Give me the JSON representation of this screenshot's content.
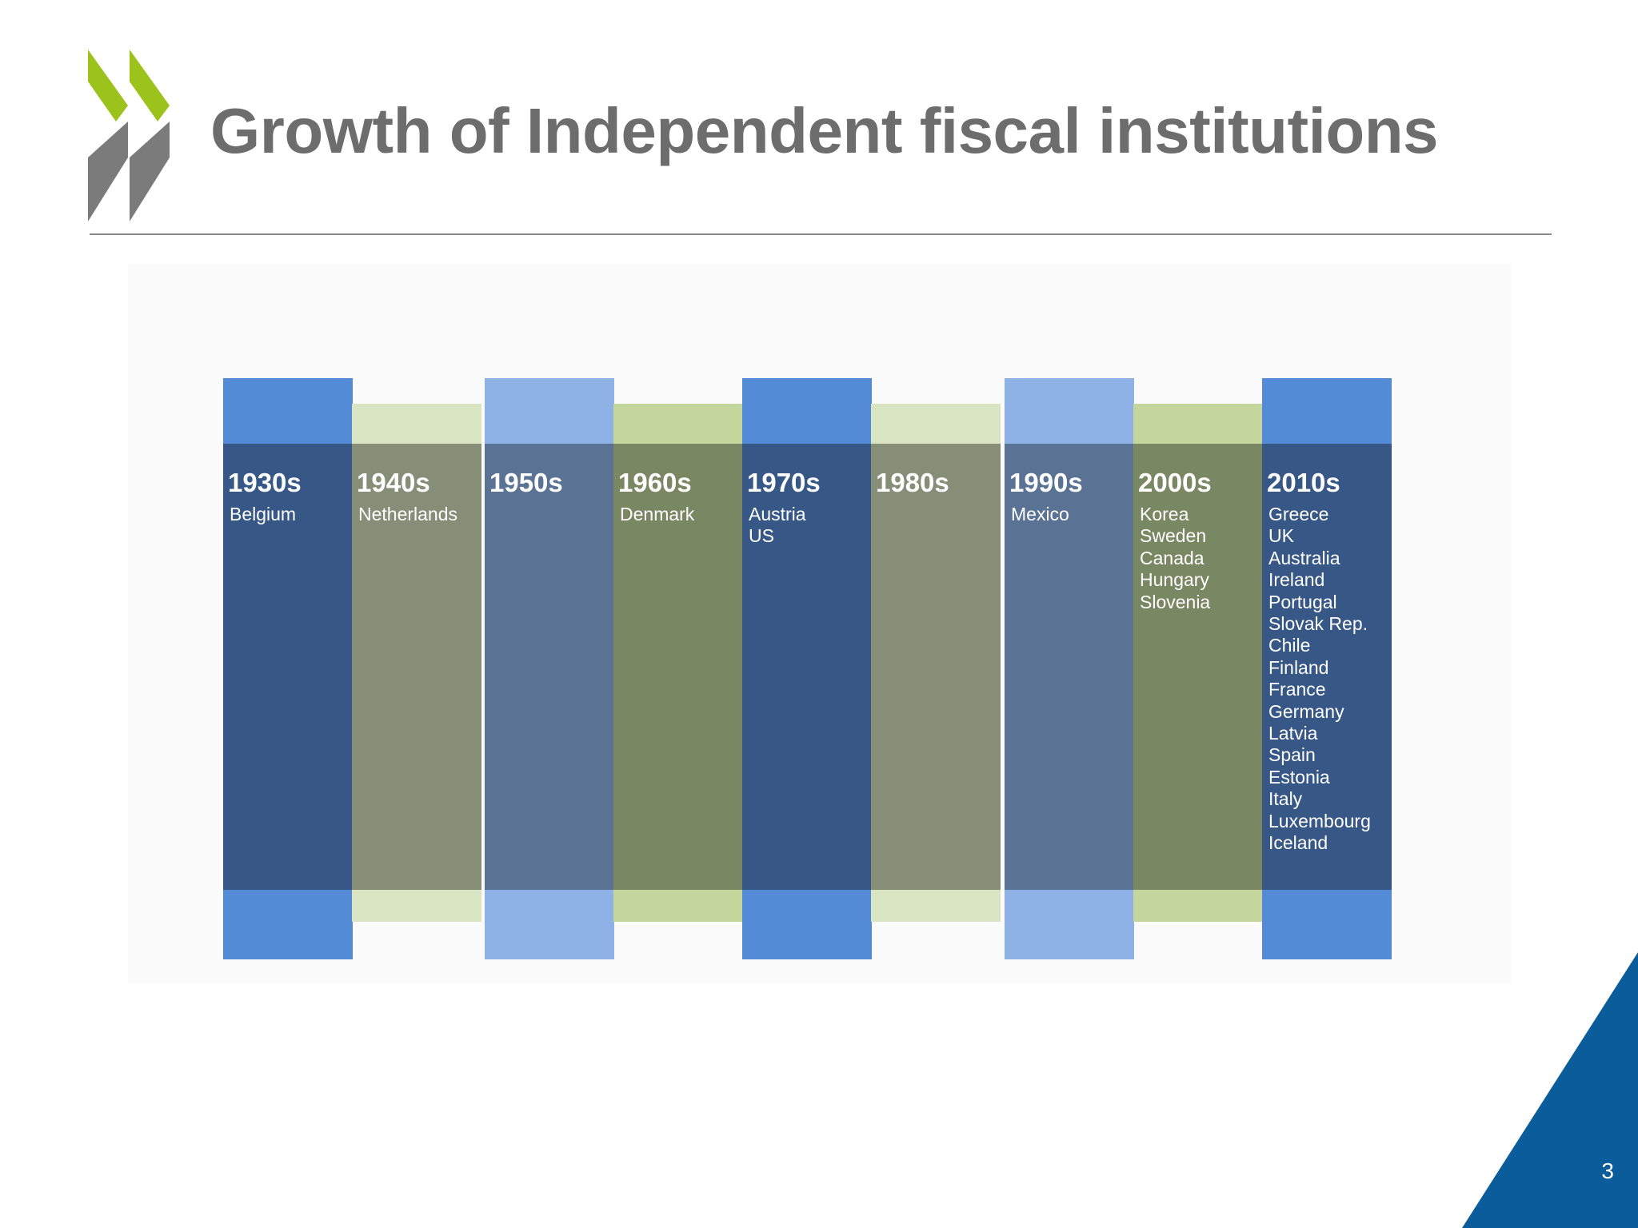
{
  "slide": {
    "title": "Growth of Independent fiscal institutions",
    "page_number": "3"
  },
  "timeline": [
    {
      "decade": "1930s",
      "countries": [
        "Belgium"
      ],
      "style": "blue-dark"
    },
    {
      "decade": "1940s",
      "countries": [
        "Netherlands"
      ],
      "style": "green-light"
    },
    {
      "decade": "1950s",
      "countries": [],
      "style": "blue-light"
    },
    {
      "decade": "1960s",
      "countries": [
        "Denmark"
      ],
      "style": "green-dark"
    },
    {
      "decade": "1970s",
      "countries": [
        "Austria",
        "US"
      ],
      "style": "blue-dark"
    },
    {
      "decade": "1980s",
      "countries": [],
      "style": "green-light"
    },
    {
      "decade": "1990s",
      "countries": [
        "Mexico"
      ],
      "style": "blue-light"
    },
    {
      "decade": "2000s",
      "countries": [
        "Korea",
        "Sweden",
        "Canada",
        "Hungary",
        "Slovenia"
      ],
      "style": "green-dark"
    },
    {
      "decade": "2010s",
      "countries": [
        "Greece",
        "UK",
        "Australia",
        "Ireland",
        "Portugal",
        "Slovak Rep.",
        "Chile",
        "Finland",
        "France",
        "Germany",
        "Latvia",
        "Spain",
        "Estonia",
        "Italy",
        "Luxembourg",
        "Iceland"
      ],
      "style": "blue-dark"
    }
  ],
  "colors": {
    "title": "#6d6d6d",
    "logo_green": "#9bc31c",
    "logo_gray": "#7b7b7b",
    "corner_blue": "#0a5c9a",
    "blue-dark": {
      "tab": "#548bd6",
      "body": "#375886"
    },
    "blue-light": {
      "tab": "#8eb2e6",
      "body": "#5a7294"
    },
    "green-light": {
      "tab": "#d8e4c2",
      "body": "#868e78"
    },
    "green-dark": {
      "tab": "#c4d69c",
      "body": "#798762"
    }
  }
}
